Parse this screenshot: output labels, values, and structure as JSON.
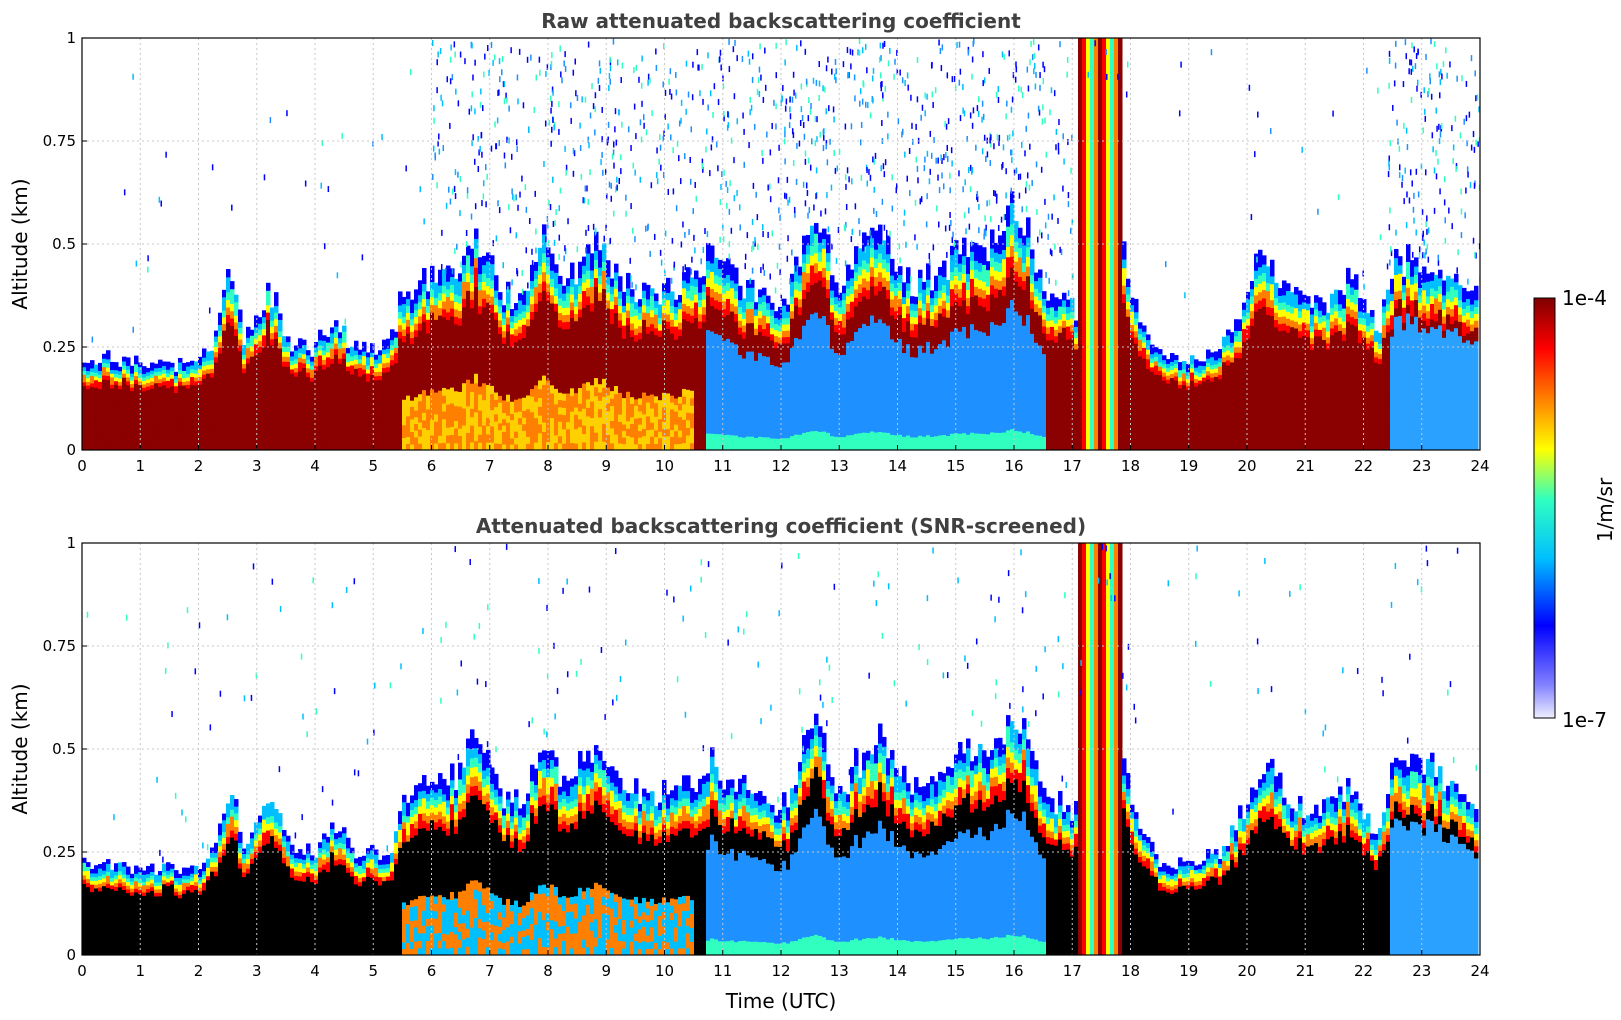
{
  "chart_data": [
    {
      "type": "heatmap",
      "title": "Raw attenuated backscattering coefficient",
      "xlabel": "",
      "ylabel": "Altitude (km)",
      "xlim": [
        0,
        24
      ],
      "ylim": [
        0,
        1
      ],
      "xticks": [
        "0",
        "1",
        "2",
        "3",
        "4",
        "5",
        "6",
        "7",
        "8",
        "9",
        "10",
        "11",
        "12",
        "13",
        "14",
        "15",
        "16",
        "17",
        "18",
        "19",
        "20",
        "21",
        "22",
        "23",
        "24"
      ],
      "yticks": [
        "0",
        "0.25",
        "0.5",
        "0.75",
        "1"
      ],
      "grid": true,
      "screened": false,
      "layer_top_km": [
        {
          "t": 0,
          "z": 0.23
        },
        {
          "t": 1,
          "z": 0.22
        },
        {
          "t": 2,
          "z": 0.21
        },
        {
          "t": 2.3,
          "z": 0.28
        },
        {
          "t": 2.55,
          "z": 0.44
        },
        {
          "t": 2.8,
          "z": 0.26
        },
        {
          "t": 3.2,
          "z": 0.4
        },
        {
          "t": 3.6,
          "z": 0.27
        },
        {
          "t": 4.0,
          "z": 0.25
        },
        {
          "t": 4.35,
          "z": 0.33
        },
        {
          "t": 4.7,
          "z": 0.25
        },
        {
          "t": 5.3,
          "z": 0.26
        },
        {
          "t": 5.5,
          "z": 0.38
        },
        {
          "t": 6.0,
          "z": 0.42
        },
        {
          "t": 6.5,
          "z": 0.44
        },
        {
          "t": 6.75,
          "z": 0.53
        },
        {
          "t": 7.2,
          "z": 0.4
        },
        {
          "t": 7.6,
          "z": 0.36
        },
        {
          "t": 7.9,
          "z": 0.52
        },
        {
          "t": 8.4,
          "z": 0.42
        },
        {
          "t": 8.8,
          "z": 0.52
        },
        {
          "t": 9.4,
          "z": 0.4
        },
        {
          "t": 10.2,
          "z": 0.4
        },
        {
          "t": 10.8,
          "z": 0.47
        },
        {
          "t": 11.5,
          "z": 0.4
        },
        {
          "t": 12.1,
          "z": 0.37
        },
        {
          "t": 12.6,
          "z": 0.6
        },
        {
          "t": 13.0,
          "z": 0.4
        },
        {
          "t": 13.7,
          "z": 0.55
        },
        {
          "t": 14.3,
          "z": 0.4
        },
        {
          "t": 15.0,
          "z": 0.48
        },
        {
          "t": 15.6,
          "z": 0.52
        },
        {
          "t": 16.1,
          "z": 0.6
        },
        {
          "t": 16.6,
          "z": 0.4
        },
        {
          "t": 17.1,
          "z": 0.35
        },
        {
          "t": 17.5,
          "z": 1.0
        },
        {
          "t": 18.0,
          "z": 0.4
        },
        {
          "t": 18.5,
          "z": 0.24
        },
        {
          "t": 19.0,
          "z": 0.22
        },
        {
          "t": 19.5,
          "z": 0.25
        },
        {
          "t": 20.0,
          "z": 0.36
        },
        {
          "t": 20.3,
          "z": 0.5
        },
        {
          "t": 20.8,
          "z": 0.38
        },
        {
          "t": 21.3,
          "z": 0.36
        },
        {
          "t": 21.8,
          "z": 0.42
        },
        {
          "t": 22.3,
          "z": 0.3
        },
        {
          "t": 22.6,
          "z": 0.48
        },
        {
          "t": 23.3,
          "z": 0.46
        },
        {
          "t": 24,
          "z": 0.38
        }
      ]
    },
    {
      "type": "heatmap",
      "title": "Attenuated backscattering coefficient (SNR-screened)",
      "xlabel": "Time (UTC)",
      "ylabel": "Altitude (km)",
      "xlim": [
        0,
        24
      ],
      "ylim": [
        0,
        1
      ],
      "xticks": [
        "0",
        "1",
        "2",
        "3",
        "4",
        "5",
        "6",
        "7",
        "8",
        "9",
        "10",
        "11",
        "12",
        "13",
        "14",
        "15",
        "16",
        "17",
        "18",
        "19",
        "20",
        "21",
        "22",
        "23",
        "24"
      ],
      "yticks": [
        "0",
        "0.25",
        "0.5",
        "0.75",
        "1"
      ],
      "grid": true,
      "screened": true,
      "layer_top_km": [
        {
          "t": 0,
          "z": 0.23
        },
        {
          "t": 1,
          "z": 0.22
        },
        {
          "t": 2,
          "z": 0.21
        },
        {
          "t": 2.3,
          "z": 0.28
        },
        {
          "t": 2.55,
          "z": 0.44
        },
        {
          "t": 2.8,
          "z": 0.26
        },
        {
          "t": 3.2,
          "z": 0.4
        },
        {
          "t": 3.6,
          "z": 0.27
        },
        {
          "t": 4.0,
          "z": 0.25
        },
        {
          "t": 4.35,
          "z": 0.33
        },
        {
          "t": 4.7,
          "z": 0.25
        },
        {
          "t": 5.3,
          "z": 0.26
        },
        {
          "t": 5.5,
          "z": 0.38
        },
        {
          "t": 6.0,
          "z": 0.42
        },
        {
          "t": 6.5,
          "z": 0.44
        },
        {
          "t": 6.75,
          "z": 0.53
        },
        {
          "t": 7.2,
          "z": 0.4
        },
        {
          "t": 7.6,
          "z": 0.36
        },
        {
          "t": 7.9,
          "z": 0.52
        },
        {
          "t": 8.4,
          "z": 0.42
        },
        {
          "t": 8.8,
          "z": 0.52
        },
        {
          "t": 9.4,
          "z": 0.4
        },
        {
          "t": 10.2,
          "z": 0.4
        },
        {
          "t": 10.8,
          "z": 0.47
        },
        {
          "t": 11.5,
          "z": 0.4
        },
        {
          "t": 12.1,
          "z": 0.37
        },
        {
          "t": 12.6,
          "z": 0.6
        },
        {
          "t": 13.0,
          "z": 0.4
        },
        {
          "t": 13.7,
          "z": 0.55
        },
        {
          "t": 14.3,
          "z": 0.4
        },
        {
          "t": 15.0,
          "z": 0.48
        },
        {
          "t": 15.6,
          "z": 0.52
        },
        {
          "t": 16.1,
          "z": 0.6
        },
        {
          "t": 16.6,
          "z": 0.4
        },
        {
          "t": 17.1,
          "z": 0.35
        },
        {
          "t": 17.5,
          "z": 1.0
        },
        {
          "t": 18.0,
          "z": 0.4
        },
        {
          "t": 18.5,
          "z": 0.24
        },
        {
          "t": 19.0,
          "z": 0.22
        },
        {
          "t": 19.5,
          "z": 0.25
        },
        {
          "t": 20.0,
          "z": 0.36
        },
        {
          "t": 20.3,
          "z": 0.5
        },
        {
          "t": 20.8,
          "z": 0.38
        },
        {
          "t": 21.3,
          "z": 0.36
        },
        {
          "t": 21.8,
          "z": 0.42
        },
        {
          "t": 22.3,
          "z": 0.3
        },
        {
          "t": 22.6,
          "z": 0.48
        },
        {
          "t": 23.3,
          "z": 0.46
        },
        {
          "t": 24,
          "z": 0.38
        }
      ]
    }
  ],
  "colorbar": {
    "label": "1/m/sr",
    "max_label": "1e-4",
    "min_label": "1e-7",
    "scale": "log",
    "range": [
      1e-07,
      0.0001
    ],
    "colormap": [
      "#eeeeff",
      "#0000ff",
      "#00bfff",
      "#30ffc0",
      "#ffff00",
      "#ff8000",
      "#ff0000",
      "#800000"
    ]
  }
}
